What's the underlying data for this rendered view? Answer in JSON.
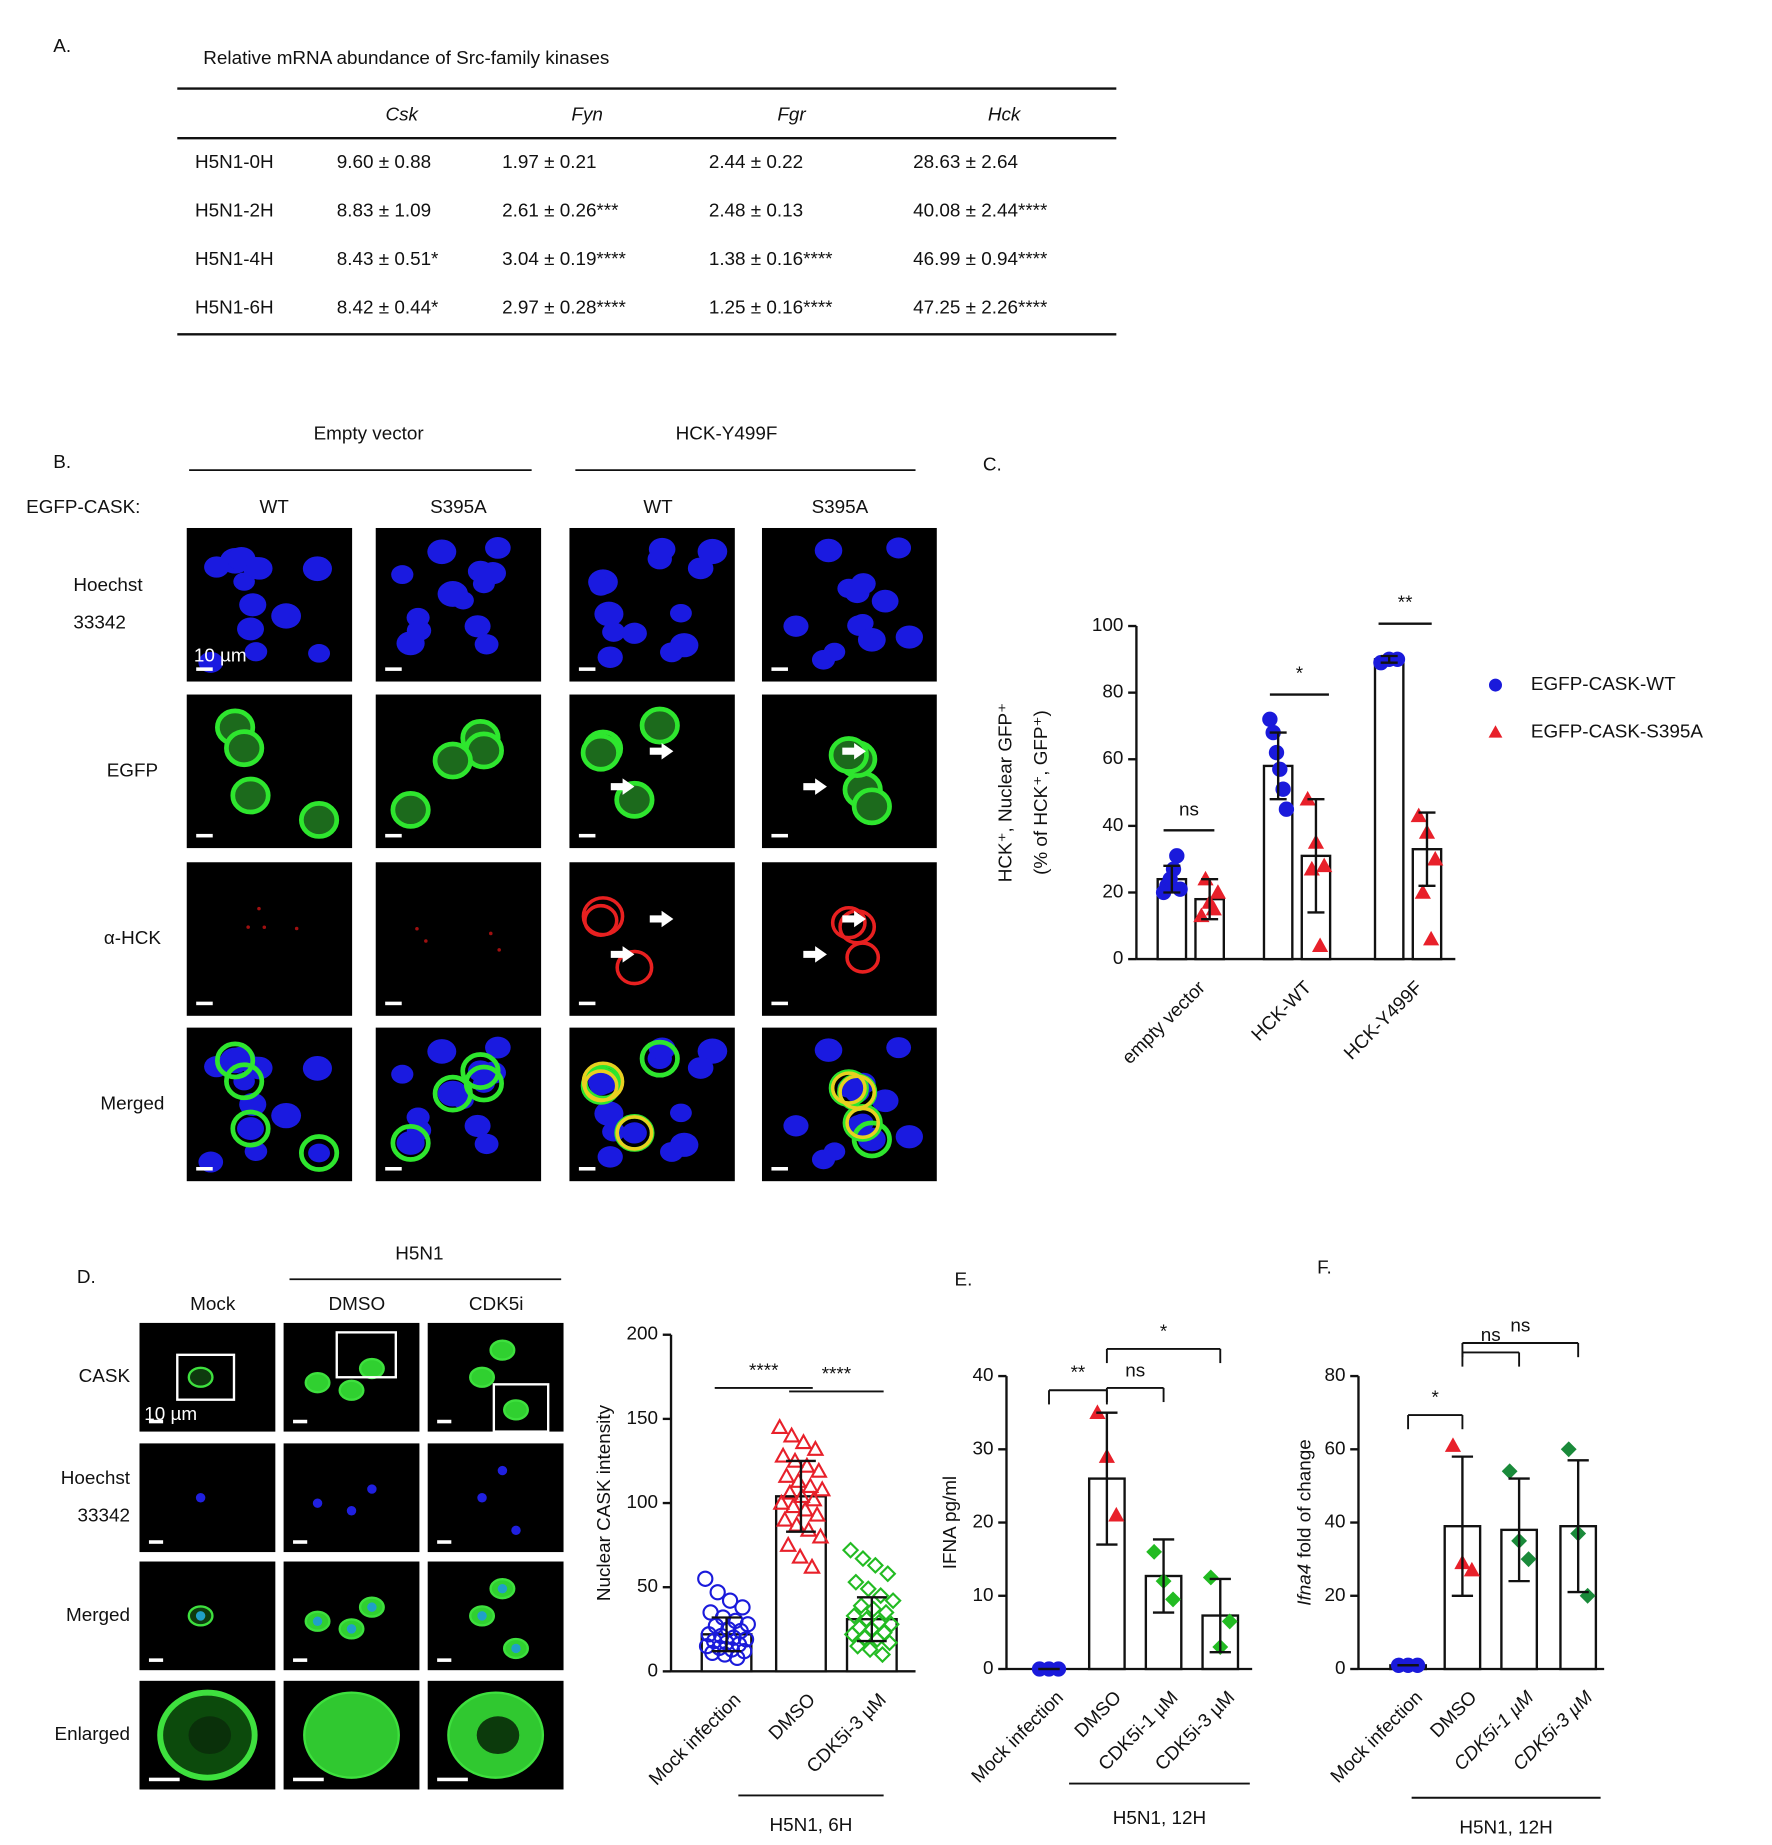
{
  "panel_labels": [
    "A.",
    "B.",
    "C.",
    "D.",
    "E.",
    "F."
  ],
  "table": {
    "title": "Relative mRNA abundance of Src-family kinases",
    "columns": [
      "Csk",
      "Fyn",
      "Fgr",
      "Hck"
    ],
    "rows": [
      [
        "H5N1-0H",
        "9.60 ± 0.88",
        "1.97 ± 0.21",
        "2.44 ± 0.22",
        "28.63 ± 2.64"
      ],
      [
        "H5N1-2H",
        "8.83 ± 1.09",
        "2.61 ± 0.26***",
        "2.48 ± 0.13",
        "40.08 ± 2.44****"
      ],
      [
        "H5N1-4H",
        "8.43 ± 0.51*",
        "3.04 ± 0.19****",
        "1.38 ± 0.16****",
        "46.99 ± 0.94****"
      ],
      [
        "H5N1-6H",
        "8.42 ± 0.44*",
        "2.97 ± 0.28****",
        "1.25 ± 0.16****",
        "47.25 ± 2.26****"
      ]
    ]
  },
  "micrograph_b": {
    "groups": [
      "Empty vector",
      "HCK-Y499F"
    ],
    "row_header": "EGFP-CASK:",
    "columns": [
      "WT",
      "S395A",
      "WT",
      "S395A"
    ],
    "rows": [
      [
        "Hoechst",
        "33342"
      ],
      [
        "EGFP"
      ],
      [
        "α-HCK"
      ],
      [
        "Merged"
      ]
    ],
    "scale_bar": "10 µm"
  },
  "micrograph_d": {
    "group": "H5N1",
    "columns": [
      "Mock",
      "DMSO",
      "CDK5i"
    ],
    "rows": [
      [
        "CASK"
      ],
      [
        "Hoechst",
        "33342"
      ],
      [
        "Merged"
      ],
      [
        "Enlarged"
      ]
    ],
    "scale_bar": "10 µm"
  },
  "chart_data": [
    {
      "type": "bar",
      "ylabel": [
        "HCK⁺, Nuclear GFP⁺",
        "(% of HCK⁺, GFP⁺)"
      ],
      "categories": [
        "empty vector",
        "HCK-WT",
        "HCK-Y499F"
      ],
      "ylim": [
        0,
        100
      ],
      "yticks": [
        0,
        20,
        40,
        60,
        80,
        100
      ],
      "legend": "right",
      "series": [
        {
          "name": "EGFP-CASK-WT",
          "color": "#1a1adb",
          "marker": "circle",
          "filled": true,
          "values": [
            24,
            58,
            90
          ],
          "errors": [
            4,
            10,
            1
          ],
          "points": [
            [
              20,
              22,
              24,
              27,
              31,
              21
            ],
            [
              72,
              68,
              62,
              57,
              51,
              45
            ],
            [
              89,
              90,
              90
            ]
          ]
        },
        {
          "name": "EGFP-CASK-S395A",
          "color": "#e8202a",
          "marker": "triangle",
          "filled": true,
          "values": [
            18,
            31,
            33
          ],
          "errors": [
            6,
            17,
            11
          ],
          "points": [
            [
              13,
              17,
              20,
              24,
              15
            ],
            [
              48,
              35,
              28,
              27,
              4
            ],
            [
              43,
              38,
              30,
              20,
              6
            ]
          ]
        }
      ],
      "significance": [
        "ns",
        "*",
        "**"
      ]
    },
    {
      "type": "bar",
      "ylabel": "Nuclear CASK intensity",
      "categories": [
        "Mock infection",
        "DMSO",
        "CDK5i-3 µM"
      ],
      "group_label": "H5N1, 6H",
      "ylim": [
        0,
        200
      ],
      "yticks": [
        0,
        50,
        100,
        150,
        200
      ],
      "colors": [
        "#1a1adb",
        "#e8202a",
        "#22bb22"
      ],
      "markers": [
        "circle",
        "triangle",
        "diamond"
      ],
      "filled": false,
      "values": [
        22,
        104,
        31
      ],
      "errors": [
        10,
        21,
        13
      ],
      "points": [
        [
          55,
          47,
          42,
          38,
          35,
          32,
          30,
          28,
          27,
          25,
          24,
          22,
          21,
          20,
          19,
          18,
          17,
          16,
          15,
          14,
          13,
          12,
          11,
          10,
          8
        ],
        [
          145,
          140,
          136,
          132,
          128,
          125,
          122,
          119,
          116,
          113,
          110,
          108,
          106,
          104,
          102,
          100,
          98,
          96,
          93,
          90,
          87,
          84,
          80,
          75,
          68,
          62
        ],
        [
          72,
          67,
          63,
          58,
          53,
          49,
          45,
          42,
          39,
          37,
          35,
          33,
          31,
          29,
          28,
          26,
          25,
          23,
          22,
          20,
          19,
          17,
          15,
          13,
          10
        ]
      ],
      "comparisons": [
        {
          "label": "****",
          "between": [
            "Mock infection",
            "DMSO"
          ]
        },
        {
          "label": "****",
          "between": [
            "DMSO",
            "CDK5i-3 µM"
          ]
        }
      ]
    },
    {
      "type": "bar",
      "ylabel": "IFNA pg/ml",
      "categories": [
        "Mock infection",
        "DMSO",
        "CDK5i-1 µM",
        "CDK5i-3 µM"
      ],
      "group_label": "H5N1, 12H",
      "ylim": [
        0,
        40
      ],
      "yticks": [
        0,
        10,
        20,
        30,
        40
      ],
      "colors": [
        "#1a1adb",
        "#e8202a",
        "#22bb22",
        "#22bb22"
      ],
      "markers": [
        "circle",
        "triangle",
        "diamond",
        "diamond"
      ],
      "filled": true,
      "values": [
        0,
        26,
        12.7,
        7.3
      ],
      "errors": [
        0,
        9,
        5,
        5
      ],
      "points": [
        [
          0,
          0,
          0
        ],
        [
          35,
          29,
          21
        ],
        [
          16,
          12,
          9.5
        ],
        [
          12.5,
          3,
          6.5
        ]
      ],
      "comparisons": [
        {
          "label": "**",
          "between": [
            "Mock infection",
            "DMSO"
          ]
        },
        {
          "label": "ns",
          "between": [
            "DMSO",
            "CDK5i-1 µM"
          ]
        },
        {
          "label": "*",
          "between": [
            "DMSO",
            "CDK5i-3 µM"
          ]
        }
      ]
    },
    {
      "type": "bar",
      "ylabel": [
        "Ifna4",
        "fold of change"
      ],
      "categories": [
        "Mock infection",
        "DMSO",
        "CDK5i-1 µM",
        "CDK5i-3 µM"
      ],
      "group_label": "H5N1, 12H",
      "ylim": [
        0,
        80
      ],
      "yticks": [
        0,
        20,
        40,
        60,
        80
      ],
      "colors": [
        "#1a1adb",
        "#e8202a",
        "#1a8a3a",
        "#1a8a3a"
      ],
      "markers": [
        "circle",
        "triangle",
        "diamond",
        "diamond"
      ],
      "filled": true,
      "values": [
        1,
        39,
        38,
        39
      ],
      "errors": [
        0,
        19,
        14,
        18
      ],
      "points": [
        [
          1,
          1,
          1
        ],
        [
          61,
          29,
          27
        ],
        [
          54,
          35,
          30
        ],
        [
          60,
          37,
          20
        ]
      ],
      "comparisons": [
        {
          "label": "*",
          "between": [
            "Mock infection",
            "DMSO"
          ]
        },
        {
          "label": "ns",
          "between": [
            "DMSO",
            "CDK5i-1 µM"
          ]
        },
        {
          "label": "ns",
          "between": [
            "DMSO",
            "CDK5i-3 µM"
          ]
        }
      ]
    }
  ]
}
